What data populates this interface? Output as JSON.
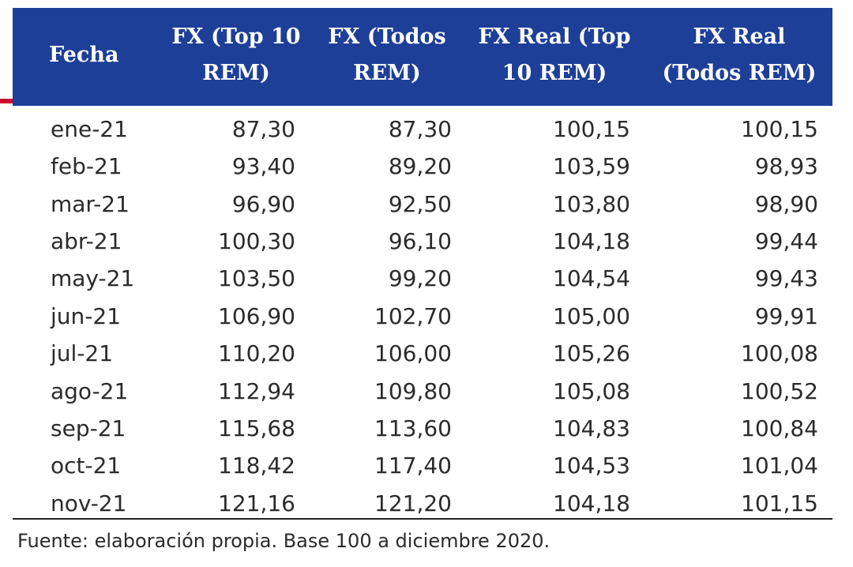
{
  "table": {
    "headers": [
      "Fecha",
      "FX (Top 10 REM)",
      "FX (Todos REM)",
      "FX Real (Top 10 REM)",
      "FX Real (Todos REM)"
    ],
    "rows": [
      [
        "ene-21",
        "87,30",
        "87,30",
        "100,15",
        "100,15"
      ],
      [
        "feb-21",
        "93,40",
        "89,20",
        "103,59",
        "98,93"
      ],
      [
        "mar-21",
        "96,90",
        "92,50",
        "103,80",
        "98,90"
      ],
      [
        "abr-21",
        "100,30",
        "96,10",
        "104,18",
        "99,44"
      ],
      [
        "may-21",
        "103,50",
        "99,20",
        "104,54",
        "99,43"
      ],
      [
        "jun-21",
        "106,90",
        "102,70",
        "105,00",
        "99,91"
      ],
      [
        "jul-21",
        "110,20",
        "106,00",
        "105,26",
        "100,08"
      ],
      [
        "ago-21",
        "112,94",
        "109,80",
        "105,08",
        "100,52"
      ],
      [
        "sep-21",
        "115,68",
        "113,60",
        "104,83",
        "100,84"
      ],
      [
        "oct-21",
        "118,42",
        "117,40",
        "104,53",
        "101,04"
      ],
      [
        "nov-21",
        "121,16",
        "121,20",
        "104,18",
        "101,15"
      ]
    ]
  },
  "source_note": "Fuente: elaboración propia. Base 100 a diciembre 2020.",
  "colors": {
    "header_bg": "#1e3f98",
    "header_text": "#ffffff",
    "accent": "#c8102e",
    "body_text": "#2b2b2b"
  }
}
